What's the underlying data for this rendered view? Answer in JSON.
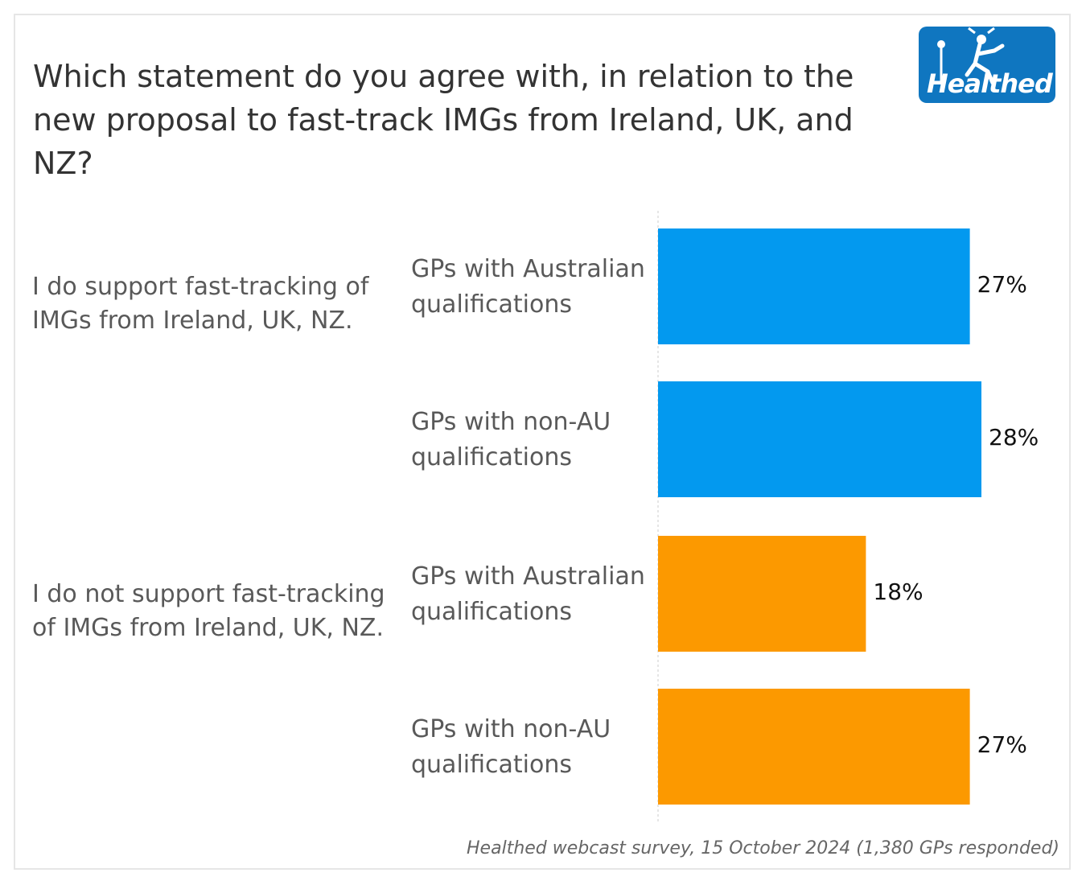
{
  "title": "Which statement do you agree with, in relation to the new proposal to fast-track IMGs from Ireland, UK, and NZ?",
  "logo": {
    "text": "Healthed",
    "icon": "hermes-figure-icon"
  },
  "source": "Healthed webcast survey, 15 October 2024 (1,380 GPs responded)",
  "colors": {
    "support": "#0399ef",
    "not_support": "#fc9900"
  },
  "chart_data": {
    "type": "bar",
    "orientation": "horizontal",
    "groups": [
      {
        "label": "I do support fast-tracking of IMGs from Ireland, UK, NZ.",
        "bars": [
          {
            "category": "GPs with Australian qualifications",
            "value": 27,
            "display": "27%"
          },
          {
            "category": "GPs with non-AU qualifications",
            "value": 28,
            "display": "28%"
          }
        ]
      },
      {
        "label": "I do not support fast-tracking of IMGs from Ireland, UK, NZ.",
        "bars": [
          {
            "category": "GPs with Australian qualifications",
            "value": 18,
            "display": "18%"
          },
          {
            "category": "GPs with non-AU qualifications",
            "value": 27,
            "display": "27%"
          }
        ]
      }
    ],
    "unit": "%",
    "xlim": [
      0,
      28
    ],
    "grid": false,
    "legend": "none"
  }
}
